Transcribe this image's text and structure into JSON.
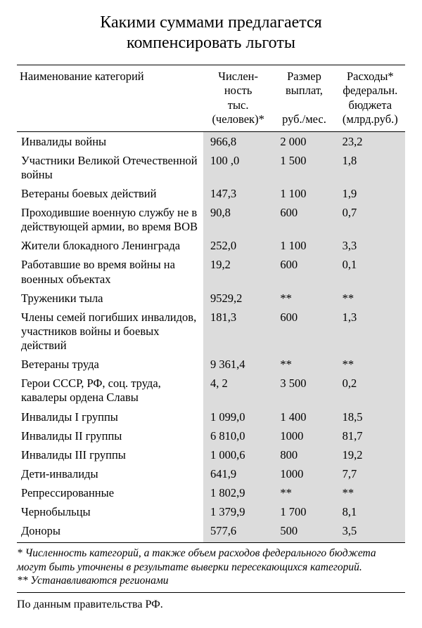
{
  "title_line1": "Какими суммами предлагается",
  "title_line2": "компенсировать льготы",
  "table": {
    "type": "table",
    "background_color": "#ffffff",
    "num_col_bg": "#dcdcdc",
    "border_color": "#000000",
    "font_family": "serif",
    "title_fontsize": 24,
    "body_fontsize": 16.5,
    "columns": [
      {
        "key": "category",
        "label": "Наименование категорий",
        "align": "left",
        "width_pct": 48
      },
      {
        "key": "population",
        "label": "Числен-\nность\nтыс.\n(человек)*",
        "align": "left",
        "width_pct": 18
      },
      {
        "key": "payment",
        "label": "Размер\nвыплат,\n\nруб./мес.",
        "align": "left",
        "width_pct": 16
      },
      {
        "key": "budget",
        "label": "Расходы*\nфедеральн.\nбюджета\n(млрд.руб.)",
        "align": "left",
        "width_pct": 18
      }
    ],
    "rows": [
      {
        "category": "Инвалиды войны",
        "population": "966,8",
        "payment": "2 000",
        "budget": "23,2"
      },
      {
        "category": "Участники Великой Отечественной войны",
        "population": "100 ,0",
        "payment": "1 500",
        "budget": "1,8"
      },
      {
        "category": "Ветераны боевых действий",
        "population": "147,3",
        "payment": "1 100",
        "budget": "1,9"
      },
      {
        "category": "Проходившие военную службу не в действующей армии, во время ВОВ",
        "population": "90,8",
        "payment": "600",
        "budget": "0,7"
      },
      {
        "category": "Жители блокадного Ленинграда",
        "population": "252,0",
        "payment": "1 100",
        "budget": "3,3"
      },
      {
        "category": "Работавшие во время войны на военных объектах",
        "population": "19,2",
        "payment": "600",
        "budget": "0,1"
      },
      {
        "category": "Труженики тыла",
        "population": "9529,2",
        "payment": "**",
        "budget": "**"
      },
      {
        "category": "Члены семей погибших инвалидов, участников войны и боевых действий",
        "population": "181,3",
        "payment": "600",
        "budget": "1,3"
      },
      {
        "category": "Ветераны труда",
        "population": "9 361,4",
        "payment": "**",
        "budget": "**"
      },
      {
        "category": "Герои СССР, РФ, соц. труда, кавалеры ордена Славы",
        "population": "4, 2",
        "payment": "3 500",
        "budget": "0,2"
      },
      {
        "category": "Инвалиды I группы",
        "population": "1 099,0",
        "payment": "1 400",
        "budget": "18,5"
      },
      {
        "category": "Инвалиды II группы",
        "population": "6 810,0",
        "payment": "1000",
        "budget": "81,7"
      },
      {
        "category": "Инвалиды III группы",
        "population": "1 000,6",
        "payment": "800",
        "budget": "19,2"
      },
      {
        "category": "Дети-инвалиды",
        "population": "641,9",
        "payment": "1000",
        "budget": "7,7"
      },
      {
        "category": "Репрессированные",
        "population": "1 802,9",
        "payment": "**",
        "budget": "**"
      },
      {
        "category": "Чернобыльцы",
        "population": "1 379,9",
        "payment": "1 700",
        "budget": "8,1"
      },
      {
        "category": "Доноры",
        "population": "577,6",
        "payment": "500",
        "budget": "3,5"
      }
    ]
  },
  "footnote1": "* Численность категорий, а также объем расходов федерального бюджета могут быть уточнены в результате выверки пересекающихся категорий.",
  "footnote2": "** Устанавливаются регионами",
  "source": "По данным правительства РФ."
}
